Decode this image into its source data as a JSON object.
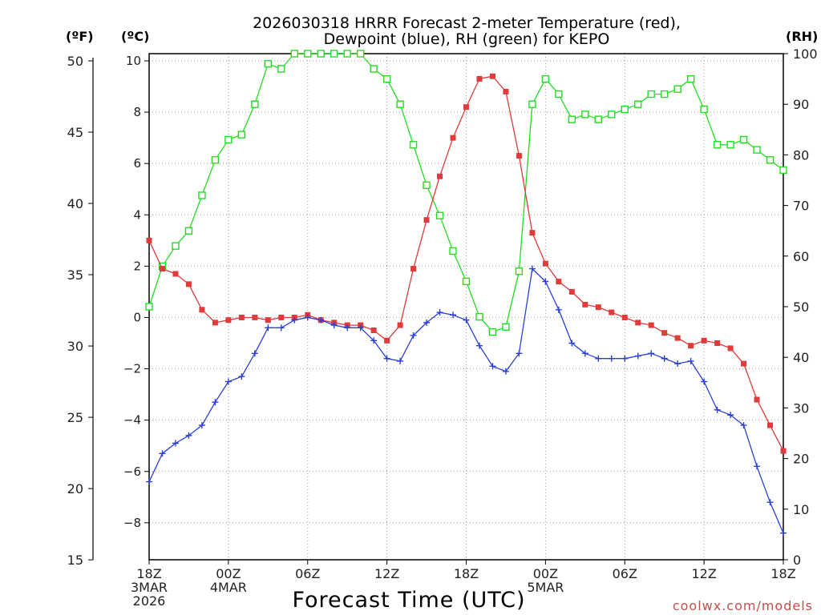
{
  "chart_data": {
    "type": "line",
    "title_line1": "2026030318 HRRR Forecast 2-meter Temperature (red),",
    "title_line2": "Dewpoint (blue), RH (green) for KEPO",
    "xlabel": "Forecast Time (UTC)",
    "credit": "coolwx.com/models",
    "unit_f": "(ºF)",
    "unit_c": "(ºC)",
    "unit_rh": "(RH)",
    "x_ticks": [
      {
        "hour": 0,
        "lines": [
          "18Z",
          "3MAR",
          "2026"
        ]
      },
      {
        "hour": 6,
        "lines": [
          "00Z",
          "4MAR"
        ]
      },
      {
        "hour": 12,
        "lines": [
          "06Z"
        ]
      },
      {
        "hour": 18,
        "lines": [
          "12Z"
        ]
      },
      {
        "hour": 24,
        "lines": [
          "18Z"
        ]
      },
      {
        "hour": 30,
        "lines": [
          "00Z",
          "5MAR"
        ]
      },
      {
        "hour": 36,
        "lines": [
          "06Z"
        ]
      },
      {
        "hour": 42,
        "lines": [
          "12Z"
        ]
      },
      {
        "hour": 48,
        "lines": [
          "18Z"
        ]
      }
    ],
    "xlim": [
      0,
      48
    ],
    "c_ticks": [
      "10",
      "8",
      "6",
      "4",
      "2",
      "0",
      "−2",
      "−4",
      "−6",
      "−8"
    ],
    "c_tick_values": [
      10,
      8,
      6,
      4,
      2,
      0,
      -2,
      -4,
      -6,
      -8
    ],
    "ylim_c": [
      -9.44,
      10.28
    ],
    "f_ticks": [
      "50",
      "45",
      "40",
      "35",
      "30",
      "25",
      "20",
      "15"
    ],
    "f_tick_values": [
      50,
      45,
      40,
      35,
      30,
      25,
      20,
      15
    ],
    "rh_ticks": [
      "100",
      "90",
      "80",
      "70",
      "60",
      "50",
      "40",
      "30",
      "20",
      "10",
      "0"
    ],
    "rh_tick_values": [
      100,
      90,
      80,
      70,
      60,
      50,
      40,
      30,
      20,
      10,
      0
    ],
    "ylim_rh": [
      0,
      100
    ],
    "series": [
      {
        "name": "Temperature",
        "color": "#e03a3a",
        "marker": "filled-square",
        "axis": "celsius",
        "values": [
          3.0,
          1.9,
          1.7,
          1.3,
          0.3,
          -0.2,
          -0.1,
          0.0,
          0.0,
          -0.1,
          0.0,
          0.0,
          0.1,
          -0.1,
          -0.2,
          -0.3,
          -0.3,
          -0.5,
          -0.9,
          -0.3,
          1.9,
          3.8,
          5.5,
          7.0,
          8.2,
          9.3,
          9.4,
          8.8,
          6.3,
          3.3,
          2.1,
          1.4,
          1.0,
          0.5,
          0.4,
          0.2,
          0.0,
          -0.2,
          -0.3,
          -0.6,
          -0.8,
          -1.1,
          -0.9,
          -1.0,
          -1.2,
          -1.8,
          -3.2,
          -4.2,
          -5.2
        ]
      },
      {
        "name": "Dewpoint",
        "color": "#2a3fd8",
        "marker": "plus",
        "axis": "celsius",
        "values": [
          -6.4,
          -5.3,
          -4.9,
          -4.6,
          -4.2,
          -3.3,
          -2.5,
          -2.3,
          -1.4,
          -0.4,
          -0.4,
          -0.1,
          0.0,
          -0.1,
          -0.3,
          -0.4,
          -0.4,
          -0.9,
          -1.6,
          -1.7,
          -0.7,
          -0.2,
          0.2,
          0.1,
          -0.1,
          -1.1,
          -1.9,
          -2.1,
          -1.4,
          1.9,
          1.4,
          0.3,
          -1.0,
          -1.4,
          -1.6,
          -1.6,
          -1.6,
          -1.5,
          -1.4,
          -1.6,
          -1.8,
          -1.7,
          -2.5,
          -3.6,
          -3.8,
          -4.2,
          -5.8,
          -7.2,
          -8.4
        ]
      },
      {
        "name": "Relative Humidity",
        "color": "#22dd22",
        "marker": "open-square",
        "axis": "rh",
        "values": [
          50,
          58,
          62,
          65,
          72,
          79,
          83,
          84,
          90,
          98,
          97,
          100,
          100,
          100,
          100,
          100,
          100,
          97,
          95,
          90,
          82,
          74,
          68,
          61,
          55,
          48,
          45,
          46,
          57,
          90,
          95,
          92,
          87,
          88,
          87,
          88,
          89,
          90,
          92,
          92,
          93,
          95,
          89,
          82,
          82,
          83,
          81,
          79,
          77
        ]
      }
    ]
  }
}
